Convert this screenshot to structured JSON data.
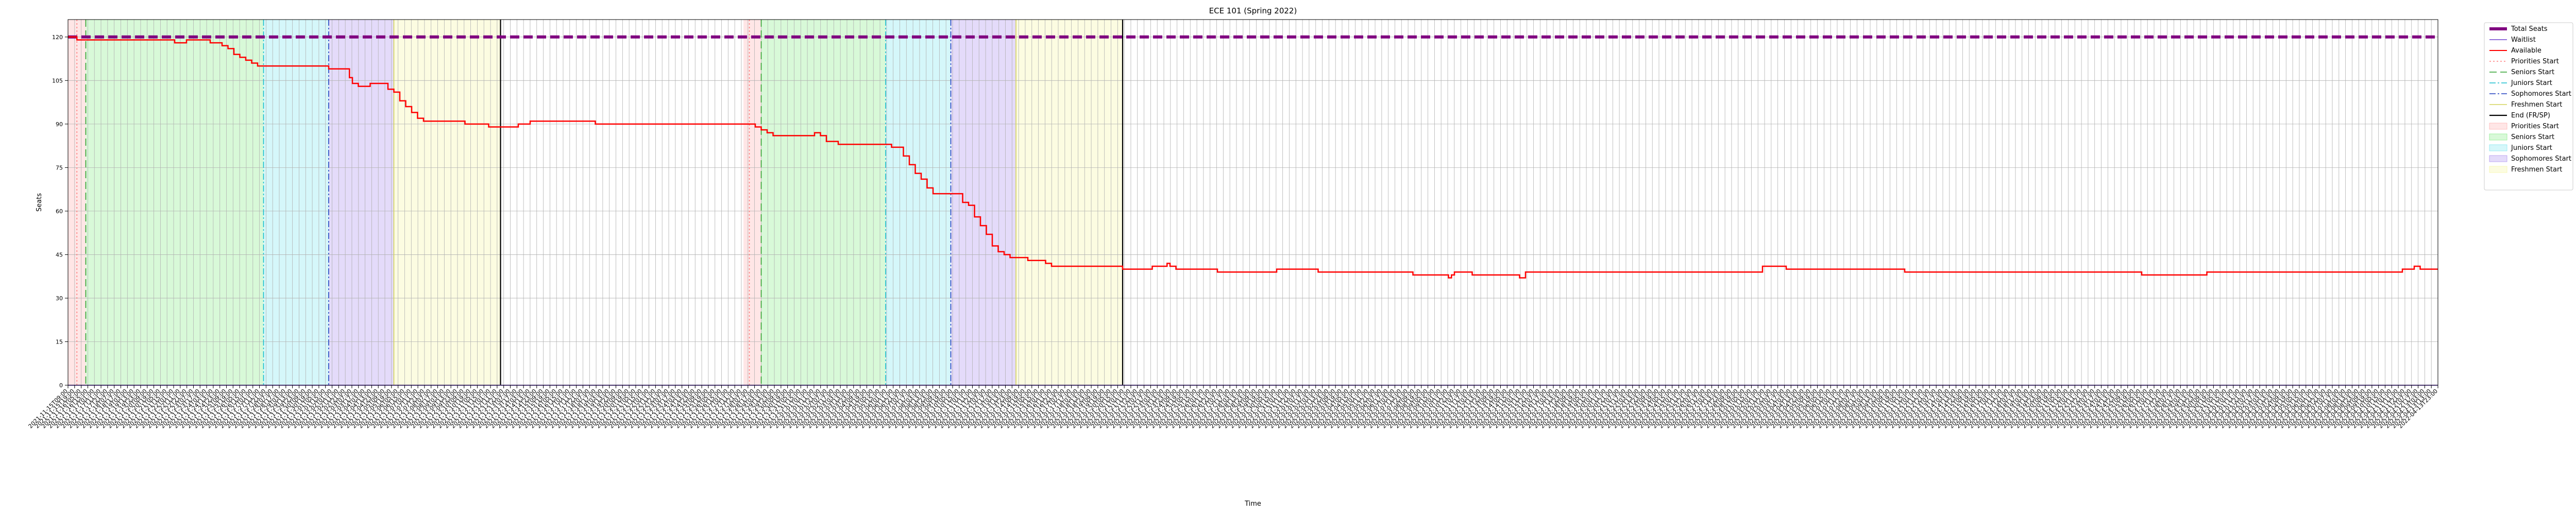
{
  "chart_data": {
    "type": "line",
    "title": "ECE 101 (Spring 2022)",
    "xlabel": "Time",
    "ylabel": "Seats",
    "ylim": [
      0,
      126
    ],
    "xlim": [
      0,
      400
    ],
    "yticks": [
      0,
      15,
      30,
      45,
      60,
      75,
      90,
      105,
      120
    ],
    "grid": true,
    "legend_position": "outside-right",
    "x_time_labels": [
      "2021-11-15T09:00",
      "2021-11-15T19:00",
      "2021-11-16T05:00",
      "2021-11-16T15:00",
      "2021-11-17T01:00",
      "2021-11-17T11:00",
      "2021-11-17T21:00",
      "2021-11-18T07:00",
      "2021-11-18T17:00",
      "2021-11-19T03:00",
      "2021-11-19T13:00",
      "2021-11-19T23:00",
      "2021-11-20T09:00",
      "2021-11-20T19:00",
      "2021-11-21T05:00",
      "2021-11-21T15:00",
      "2021-11-22T01:00",
      "2021-11-22T11:00",
      "2021-11-22T21:00",
      "2021-11-23T07:00",
      "2021-11-23T17:00",
      "2021-11-24T03:00",
      "2021-11-24T13:00",
      "2021-11-24T23:00",
      "2021-11-25T09:00",
      "2021-11-25T19:00",
      "2021-11-26T05:00",
      "2021-11-26T15:00",
      "2021-11-27T01:00",
      "2021-11-27T11:00",
      "2021-11-27T21:00",
      "2021-11-28T07:00",
      "2021-11-28T17:00",
      "2021-11-29T03:00",
      "2021-11-29T13:00",
      "2021-11-29T23:00",
      "2021-11-30T09:00",
      "2021-11-30T19:00",
      "2021-12-01T05:00",
      "2021-12-01T15:00",
      "2021-12-02T01:00",
      "2021-12-02T11:00",
      "2021-12-02T21:00",
      "2021-12-03T07:00",
      "2021-12-03T17:00",
      "2021-12-04T03:00",
      "2021-12-04T13:00",
      "2021-12-04T23:00",
      "2021-12-05T09:00",
      "2021-12-05T19:00",
      "2021-12-06T05:00",
      "2021-12-06T15:00",
      "2021-12-07T01:00",
      "2021-12-07T11:00",
      "2021-12-07T21:00",
      "2021-12-08T07:00",
      "2021-12-08T17:00",
      "2021-12-09T03:00",
      "2021-12-09T13:00",
      "2021-12-09T23:00",
      "2021-12-10T09:00",
      "2021-12-10T19:00",
      "2021-12-11T05:00",
      "2021-12-11T15:00",
      "2021-12-12T01:00",
      "2021-12-12T11:00",
      "2021-12-12T21:00",
      "2021-12-13T07:00",
      "2021-12-13T17:00",
      "2021-12-14T03:00",
      "2021-12-14T13:00",
      "2021-12-14T23:00",
      "2021-12-15T09:00",
      "2021-12-15T19:00",
      "2021-12-16T05:00",
      "2021-12-16T15:00",
      "2021-12-17T01:00",
      "2021-12-17T11:00",
      "2021-12-17T21:00",
      "2021-12-18T07:00",
      "2021-12-18T17:00",
      "2021-12-19T03:00",
      "2021-12-19T13:00",
      "2021-12-19T23:00",
      "2021-12-20T09:00",
      "2021-12-20T19:00",
      "2021-12-21T05:00",
      "2021-12-21T15:00",
      "2021-12-22T01:00",
      "2021-12-22T11:00",
      "2021-12-22T21:00",
      "2021-12-23T07:00",
      "2021-12-23T17:00",
      "2021-12-24T03:00",
      "2021-12-24T13:00",
      "2021-12-24T23:00",
      "2021-12-25T09:00",
      "2021-12-25T19:00",
      "2021-12-26T05:00",
      "2021-12-26T15:00",
      "2021-12-27T01:00",
      "2021-12-27T11:00",
      "2021-12-27T21:00",
      "2021-12-28T07:00",
      "2021-12-28T17:00",
      "2021-12-29T03:00",
      "2021-12-29T13:00",
      "2021-12-29T23:00",
      "2021-12-30T09:00",
      "2021-12-30T19:00",
      "2021-12-31T05:00",
      "2021-12-31T15:00",
      "2022-01-01T01:00",
      "2022-01-01T11:00",
      "2022-01-01T21:00",
      "2022-01-02T07:00",
      "2022-01-02T17:00",
      "2022-01-03T03:00",
      "2022-01-03T13:00",
      "2022-01-03T23:00",
      "2022-01-04T09:00",
      "2022-01-04T19:00",
      "2022-01-05T05:00",
      "2022-01-05T15:00",
      "2022-01-06T01:00",
      "2022-01-06T11:00",
      "2022-01-06T21:00",
      "2022-01-07T07:00",
      "2022-01-07T17:00",
      "2022-01-08T03:00",
      "2022-01-08T13:00",
      "2022-01-08T23:00",
      "2022-01-09T09:00",
      "2022-01-09T19:00",
      "2022-01-10T05:00",
      "2022-01-10T15:00",
      "2022-01-11T01:00",
      "2022-01-11T11:00",
      "2022-01-11T21:00",
      "2022-01-12T07:00",
      "2022-01-12T17:00",
      "2022-01-13T03:00",
      "2022-01-13T13:00",
      "2022-01-13T23:00",
      "2022-01-14T09:00",
      "2022-01-14T19:00",
      "2022-01-15T05:00",
      "2022-01-15T15:00",
      "2022-01-16T01:00",
      "2022-01-16T11:00",
      "2022-01-16T21:00",
      "2022-01-17T07:00",
      "2022-01-17T17:00",
      "2022-01-18T03:00",
      "2022-01-18T13:00",
      "2022-01-18T23:00",
      "2022-01-19T09:00",
      "2022-01-19T19:00",
      "2022-01-20T05:00",
      "2022-01-20T15:00",
      "2022-01-21T01:00",
      "2022-01-21T11:00",
      "2022-01-21T21:00",
      "2022-01-22T07:00",
      "2022-01-22T17:00",
      "2022-01-23T03:00",
      "2022-01-23T13:00",
      "2022-01-23T23:00",
      "2022-01-24T09:00",
      "2022-01-24T19:00",
      "2022-01-25T05:00",
      "2022-01-25T15:00",
      "2022-01-26T01:00",
      "2022-01-26T11:00",
      "2022-01-26T21:00",
      "2022-01-27T07:00",
      "2022-01-27T17:00",
      "2022-01-28T03:00",
      "2022-01-28T13:00",
      "2022-01-28T23:00",
      "2022-01-29T09:00",
      "2022-01-29T19:00",
      "2022-01-30T05:00",
      "2022-01-30T15:00",
      "2022-01-31T01:00",
      "2022-01-31T11:00",
      "2022-01-31T21:00",
      "2022-02-01T07:00",
      "2022-02-01T17:00",
      "2022-02-02T03:00",
      "2022-02-02T13:00",
      "2022-02-02T23:00",
      "2022-02-03T09:00",
      "2022-02-03T19:00",
      "2022-02-04T05:00",
      "2022-02-04T15:00",
      "2022-02-05T01:00",
      "2022-02-05T11:00",
      "2022-02-05T21:00",
      "2022-02-06T07:00",
      "2022-02-06T17:00",
      "2022-02-07T03:00",
      "2022-02-07T13:00",
      "2022-02-07T23:00",
      "2022-02-08T09:00",
      "2022-02-08T19:00",
      "2022-02-09T05:00",
      "2022-02-09T15:00",
      "2022-02-10T01:00",
      "2022-02-10T11:00",
      "2022-02-10T21:00",
      "2022-02-11T07:00",
      "2022-02-11T17:00",
      "2022-02-12T03:00",
      "2022-02-12T13:00",
      "2022-02-12T23:00",
      "2022-02-13T09:00",
      "2022-02-13T19:00",
      "2022-02-14T05:00",
      "2022-02-14T15:00",
      "2022-02-15T01:00",
      "2022-02-15T11:00",
      "2022-02-15T21:00",
      "2022-02-16T07:00",
      "2022-02-16T17:00",
      "2022-02-17T03:00",
      "2022-02-17T13:00",
      "2022-02-17T23:00",
      "2022-02-18T09:00",
      "2022-02-18T19:00",
      "2022-02-19T05:00",
      "2022-02-19T15:00",
      "2022-02-20T01:00",
      "2022-02-20T11:00",
      "2022-02-20T21:00",
      "2022-02-21T07:00",
      "2022-02-21T17:00",
      "2022-02-22T03:00",
      "2022-02-22T13:00",
      "2022-02-22T23:00",
      "2022-02-23T09:00",
      "2022-02-23T19:00",
      "2022-02-24T05:00",
      "2022-02-24T15:00",
      "2022-02-25T01:00",
      "2022-02-25T11:00",
      "2022-02-25T21:00",
      "2022-02-26T07:00",
      "2022-02-26T17:00",
      "2022-02-27T03:00",
      "2022-02-27T13:00",
      "2022-02-27T23:00",
      "2022-02-28T09:00",
      "2022-02-28T19:00",
      "2022-03-01T05:00",
      "2022-03-01T15:00",
      "2022-03-02T01:00",
      "2022-03-02T11:00",
      "2022-03-02T21:00",
      "2022-03-03T07:00",
      "2022-03-03T17:00",
      "2022-03-04T03:00",
      "2022-03-04T13:00",
      "2022-03-04T23:00",
      "2022-03-05T09:00",
      "2022-03-05T19:00",
      "2022-03-06T05:00",
      "2022-03-06T15:00",
      "2022-03-07T01:00",
      "2022-03-07T11:00",
      "2022-03-07T21:00",
      "2022-03-08T07:00",
      "2022-03-08T17:00",
      "2022-03-09T03:00",
      "2022-03-09T13:00",
      "2022-03-09T23:00",
      "2022-03-10T09:00",
      "2022-03-10T19:00",
      "2022-03-11T05:00",
      "2022-03-11T15:00",
      "2022-03-12T01:00",
      "2022-03-12T11:00",
      "2022-03-12T21:00",
      "2022-03-13T07:00",
      "2022-03-13T17:00",
      "2022-03-14T03:00",
      "2022-03-14T13:00",
      "2022-03-14T23:00",
      "2022-03-15T09:00",
      "2022-03-15T19:00",
      "2022-03-16T05:00",
      "2022-03-16T15:00",
      "2022-03-17T01:00",
      "2022-03-17T11:00",
      "2022-03-17T21:00",
      "2022-03-18T07:00",
      "2022-03-18T17:00",
      "2022-03-19T03:00",
      "2022-03-19T13:00",
      "2022-03-19T23:00",
      "2022-03-20T09:00",
      "2022-03-20T19:00",
      "2022-03-21T05:00",
      "2022-03-21T15:00",
      "2022-03-22T01:00",
      "2022-03-22T11:00",
      "2022-03-22T21:00",
      "2022-03-23T07:00",
      "2022-03-23T17:00",
      "2022-03-24T03:00",
      "2022-03-24T13:00",
      "2022-03-24T23:00",
      "2022-03-25T09:00",
      "2022-03-25T19:00",
      "2022-03-26T05:00",
      "2022-03-26T15:00",
      "2022-03-27T01:00",
      "2022-03-27T11:00",
      "2022-03-27T21:00",
      "2022-03-28T07:00",
      "2022-03-28T17:00",
      "2022-03-29T03:00",
      "2022-03-29T13:00",
      "2022-03-29T23:00",
      "2022-03-30T09:00",
      "2022-03-30T19:00",
      "2022-03-31T05:00",
      "2022-03-31T15:00",
      "2022-04-01T01:00",
      "2022-04-01T11:00",
      "2022-04-01T21:00",
      "2022-04-02T07:00",
      "2022-04-02T17:00",
      "2022-04-03T03:00",
      "2022-04-03T13:00",
      "2022-04-03T23:00",
      "2022-04-04T09:00",
      "2022-04-04T19:00",
      "2022-04-05T05:00",
      "2022-04-05T15:00",
      "2022-04-06T01:00",
      "2022-04-06T11:00",
      "2022-04-06T21:00",
      "2022-04-07T07:00",
      "2022-04-07T17:00",
      "2022-04-08T03:00",
      "2022-04-08T13:00",
      "2022-04-08T23:00",
      "2022-04-09T09:00",
      "2022-04-09T19:00",
      "2022-04-10T05:00",
      "2022-04-10T15:00",
      "2022-04-11T01:00",
      "2022-04-11T11:00",
      "2022-04-11T21:00",
      "2022-04-12T07:00",
      "2022-04-12T17:00",
      "2022-04-13T03:00",
      "2022-04-13T13:00",
      "2022-04-13T23:00"
    ],
    "series": [
      {
        "name": "Total Seats",
        "color": "#800080",
        "style": "dashed",
        "points": [
          [
            0,
            120
          ],
          [
            400,
            120
          ]
        ]
      },
      {
        "name": "Waitlist",
        "color": "#9370db",
        "style": "solid",
        "points": [
          [
            0,
            0
          ],
          [
            400,
            0
          ]
        ]
      },
      {
        "name": "Available",
        "color": "#ff0000",
        "style": "solid-step",
        "points": [
          [
            0,
            120
          ],
          [
            1.5,
            119
          ],
          [
            4,
            119
          ],
          [
            8,
            119
          ],
          [
            16,
            119
          ],
          [
            18,
            118
          ],
          [
            20,
            119
          ],
          [
            22,
            119
          ],
          [
            24,
            118
          ],
          [
            26,
            117
          ],
          [
            27,
            116
          ],
          [
            28,
            114
          ],
          [
            29,
            113
          ],
          [
            30,
            112
          ],
          [
            31,
            111
          ],
          [
            32,
            110
          ],
          [
            43,
            110
          ],
          [
            44,
            109
          ],
          [
            47,
            109
          ],
          [
            47.5,
            106
          ],
          [
            48,
            104
          ],
          [
            49,
            103
          ],
          [
            50,
            103
          ],
          [
            51,
            104
          ],
          [
            53,
            104
          ],
          [
            54,
            102
          ],
          [
            55,
            101
          ],
          [
            56,
            98
          ],
          [
            57,
            96
          ],
          [
            58,
            94
          ],
          [
            59,
            92
          ],
          [
            60,
            91
          ],
          [
            66,
            91
          ],
          [
            67,
            90
          ],
          [
            70,
            90
          ],
          [
            71,
            89
          ],
          [
            75,
            89
          ],
          [
            76,
            90
          ],
          [
            77,
            90
          ],
          [
            78,
            91
          ],
          [
            88,
            91
          ],
          [
            89,
            90
          ],
          [
            107,
            90
          ],
          [
            115,
            90
          ],
          [
            116,
            89
          ],
          [
            117,
            88
          ],
          [
            118,
            87
          ],
          [
            119,
            86
          ],
          [
            125,
            86
          ],
          [
            126,
            87
          ],
          [
            127,
            86
          ],
          [
            128,
            84
          ],
          [
            129,
            84
          ],
          [
            130,
            83
          ],
          [
            138,
            83
          ],
          [
            139,
            82
          ],
          [
            140,
            82
          ],
          [
            141,
            79
          ],
          [
            142,
            76
          ],
          [
            143,
            73
          ],
          [
            144,
            71
          ],
          [
            145,
            68
          ],
          [
            146,
            66
          ],
          [
            150,
            66
          ],
          [
            151,
            63
          ],
          [
            152,
            62
          ],
          [
            153,
            58
          ],
          [
            154,
            55
          ],
          [
            155,
            52
          ],
          [
            156,
            48
          ],
          [
            157,
            46
          ],
          [
            158,
            45
          ],
          [
            159,
            44
          ],
          [
            161,
            44
          ],
          [
            162,
            43
          ],
          [
            164,
            43
          ],
          [
            165,
            42
          ],
          [
            166,
            41
          ],
          [
            177,
            41
          ],
          [
            178,
            40
          ],
          [
            182,
            40
          ],
          [
            183,
            41
          ],
          [
            185,
            41
          ],
          [
            185.5,
            42
          ],
          [
            186,
            41
          ],
          [
            186.5,
            41
          ],
          [
            187,
            40
          ],
          [
            193,
            40
          ],
          [
            194,
            39
          ],
          [
            203,
            39
          ],
          [
            204,
            40
          ],
          [
            210,
            40
          ],
          [
            211,
            39
          ],
          [
            226,
            39
          ],
          [
            227,
            38
          ],
          [
            232,
            38
          ],
          [
            233,
            37
          ],
          [
            233.5,
            38
          ],
          [
            234,
            39
          ],
          [
            236,
            39
          ],
          [
            237,
            38
          ],
          [
            244,
            38
          ],
          [
            245,
            37
          ],
          [
            246,
            39
          ],
          [
            285,
            39
          ],
          [
            286,
            41
          ],
          [
            289,
            41
          ],
          [
            290,
            40
          ],
          [
            309,
            40
          ],
          [
            310,
            39
          ],
          [
            349,
            39
          ],
          [
            350,
            38
          ],
          [
            360,
            38
          ],
          [
            361,
            39
          ],
          [
            393,
            39
          ],
          [
            394,
            40
          ],
          [
            396,
            41
          ],
          [
            397,
            40
          ],
          [
            400,
            40
          ]
        ]
      }
    ],
    "vertical_markers": [
      {
        "name": "Priorities Start",
        "color": "#ff7f7f",
        "style": "dotted",
        "positions": [
          1.5,
          115
        ]
      },
      {
        "name": "Seniors Start",
        "color": "#2ca02c",
        "style": "dashed",
        "positions": [
          3,
          117
        ]
      },
      {
        "name": "Juniors Start",
        "color": "#17becf",
        "style": "dashdot",
        "positions": [
          33,
          138
        ]
      },
      {
        "name": "Sophomores Start",
        "color": "#1f3fbf",
        "style": "dashdot",
        "positions": [
          44,
          149
        ]
      },
      {
        "name": "Freshmen Start",
        "color": "#d4d45a",
        "style": "solid",
        "positions": [
          55,
          160
        ]
      },
      {
        "name": "End (FR/SP)",
        "color": "#000000",
        "style": "solid",
        "positions": [
          73,
          178
        ]
      }
    ],
    "shaded_regions": [
      {
        "name": "Priorities Start",
        "color": "#ffb6b6",
        "ranges": [
          [
            0,
            3
          ],
          [
            114,
            117
          ]
        ]
      },
      {
        "name": "Seniors Start",
        "color": "#90ee90",
        "ranges": [
          [
            3,
            33
          ],
          [
            117,
            138
          ]
        ]
      },
      {
        "name": "Juniors Start",
        "color": "#87e8f0",
        "ranges": [
          [
            33,
            44
          ],
          [
            138,
            149
          ]
        ]
      },
      {
        "name": "Sophomores Start",
        "color": "#b399f0",
        "ranges": [
          [
            44,
            55
          ],
          [
            149,
            160
          ]
        ]
      },
      {
        "name": "Freshmen Start",
        "color": "#f5f5a8",
        "ranges": [
          [
            55,
            73
          ],
          [
            160,
            178
          ]
        ]
      }
    ]
  }
}
